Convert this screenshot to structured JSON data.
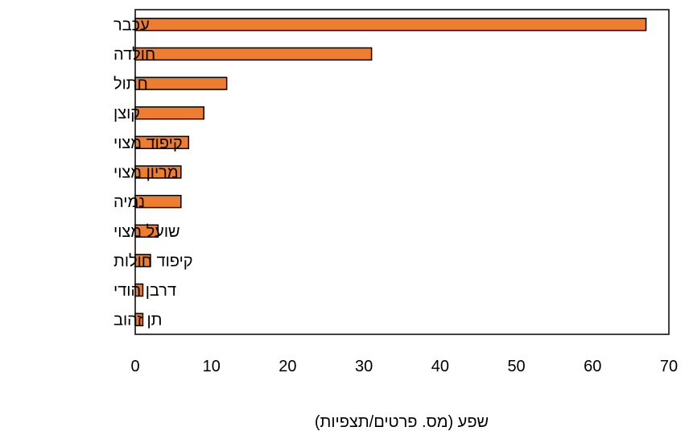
{
  "chart_data": {
    "type": "bar",
    "orientation": "horizontal",
    "categories": [
      "עכבר",
      "חולדה",
      "חתול",
      "קוצן",
      "קיפוד מצוי",
      "מריון מצוי",
      "נמיה",
      "שועל מצוי",
      "קיפוד חולות",
      "דרבן הודי",
      "תן זהוב"
    ],
    "values": [
      67,
      31,
      12,
      9,
      7,
      6,
      6,
      3,
      2,
      1,
      1
    ],
    "xlabel": "שפע (מס. פרטים/תצפיות)",
    "ylabel": "",
    "xlim": [
      0,
      70
    ],
    "xticks": [
      "0",
      "10",
      "20",
      "30",
      "40",
      "50",
      "60",
      "70"
    ],
    "grid": false,
    "legend": "none",
    "bar_color": "#ED7D31",
    "bar_edge_color": "#000000"
  }
}
